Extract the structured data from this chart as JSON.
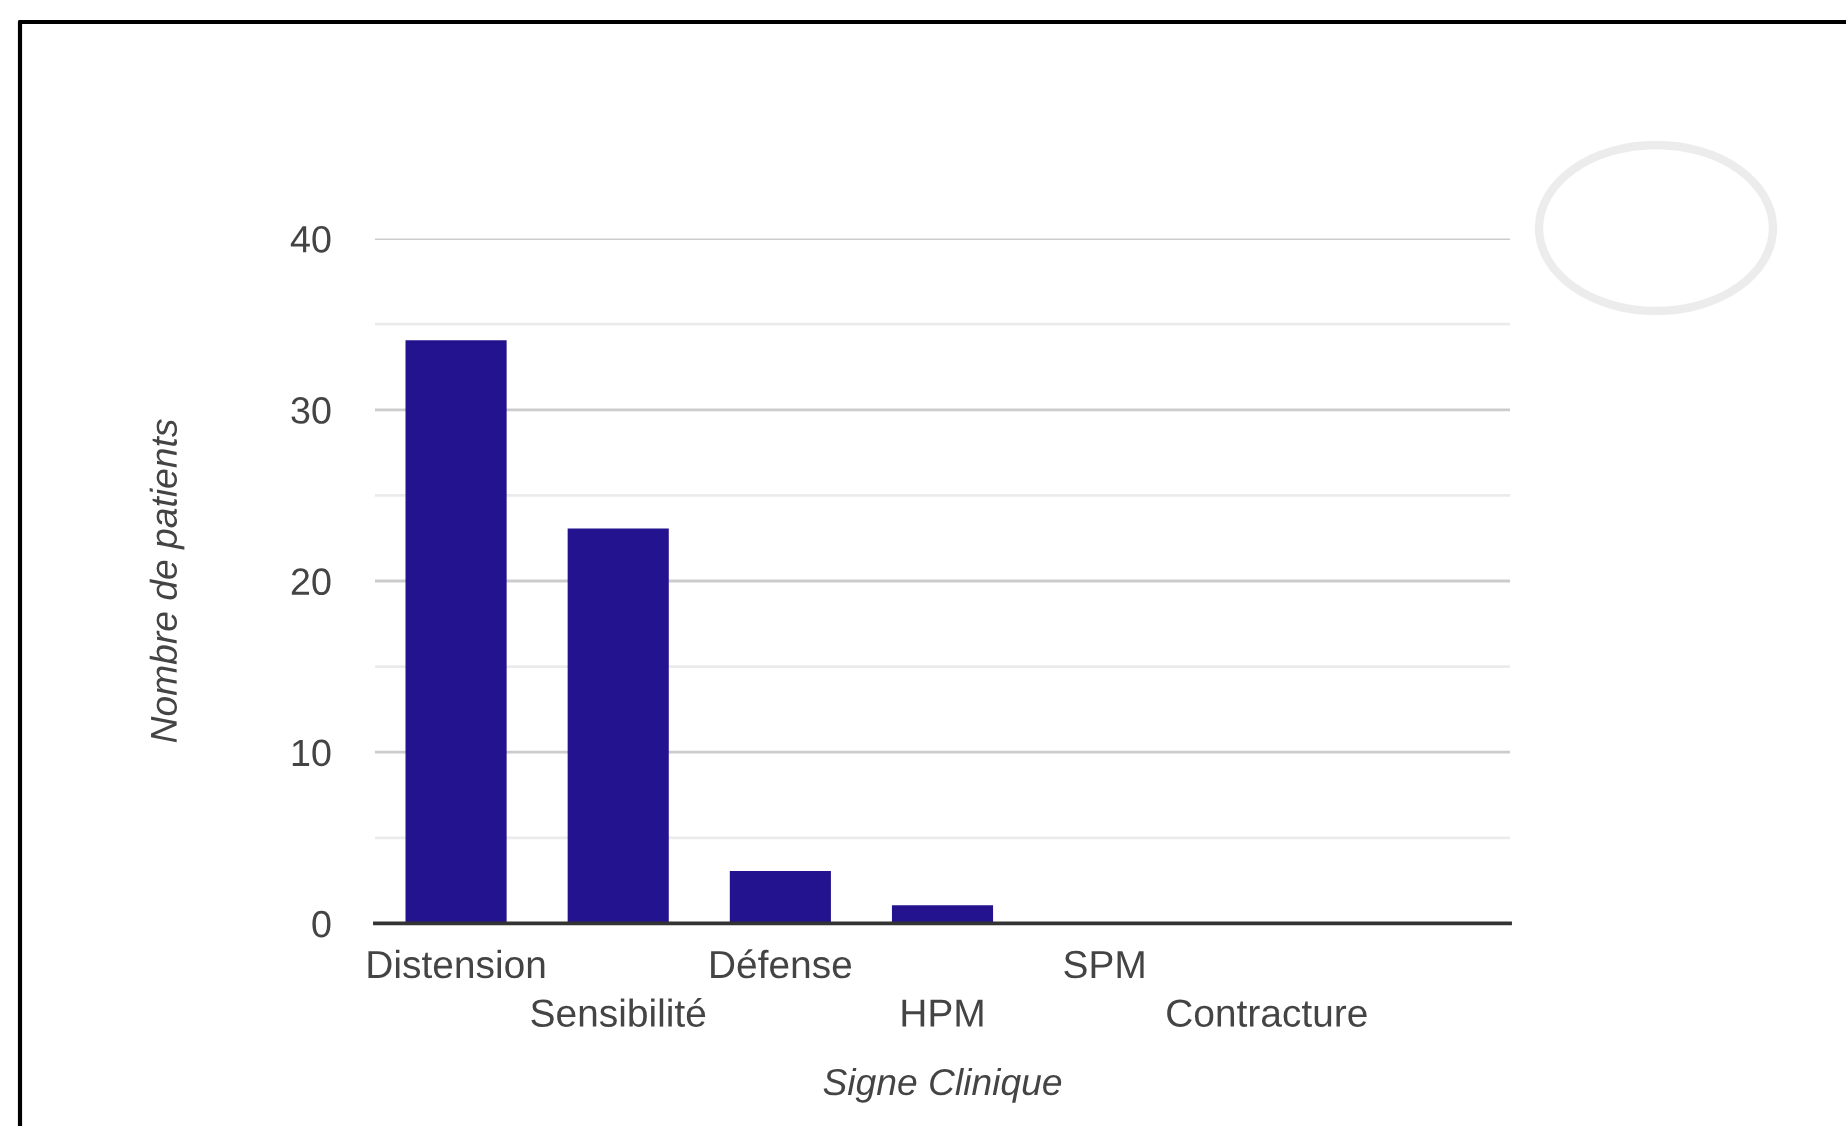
{
  "chart_data": {
    "type": "bar",
    "xlabel": "Signe Clinique",
    "ylabel": "Nombre de patients",
    "categories": [
      "Distension",
      "Sensibilité",
      "Défense",
      "HPM",
      "SPM",
      "Contracture",
      null
    ],
    "values": [
      34,
      23,
      3,
      1,
      0,
      0,
      null
    ],
    "color": "#23138e",
    "ylim": [
      0,
      40
    ],
    "yticks": [
      0,
      {
        "value": 5,
        "label": null
      },
      10,
      {
        "value": 15,
        "label": null
      },
      20,
      {
        "value": 25,
        "label": null
      },
      30,
      {
        "value": 35,
        "label": null
      },
      40
    ],
    "grid": "y"
  }
}
